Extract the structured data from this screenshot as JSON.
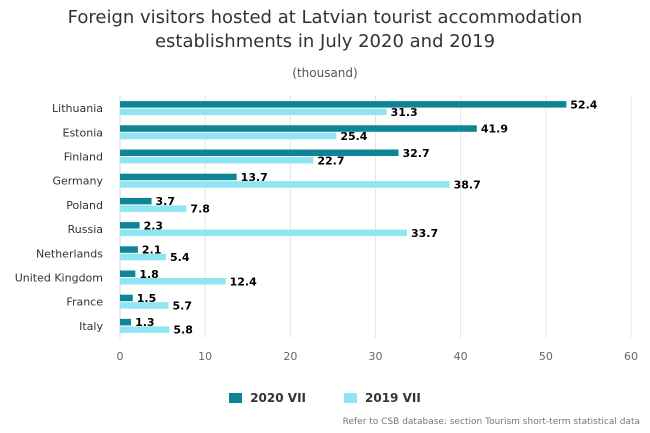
{
  "chart_data": {
    "type": "bar",
    "orientation": "horizontal",
    "title_lines": [
      "Foreign visitors hosted at Latvian tourist accommodation",
      "establishments in July 2020 and 2019"
    ],
    "subtitle": "(thousand)",
    "categories": [
      "Lithuania",
      "Estonia",
      "Finland",
      "Germany",
      "Poland",
      "Russia",
      "Netherlands",
      "United Kingdom",
      "France",
      "Italy"
    ],
    "series": [
      {
        "name": "2020 VII",
        "color": "#0d8597",
        "values": [
          52.4,
          41.9,
          32.7,
          13.7,
          3.7,
          2.3,
          2.1,
          1.8,
          1.5,
          1.3
        ]
      },
      {
        "name": "2019 VII",
        "color": "#8fe5f3",
        "values": [
          31.3,
          25.4,
          22.7,
          38.7,
          7.8,
          33.7,
          5.4,
          12.4,
          5.7,
          5.8
        ]
      }
    ],
    "xlim": [
      0,
      60
    ],
    "xticks": [
      0,
      10,
      20,
      30,
      40,
      50,
      60
    ],
    "grid": true,
    "legend_position": "bottom"
  },
  "credits": "Refer to CSB database: section Tourism short-term statistical data"
}
